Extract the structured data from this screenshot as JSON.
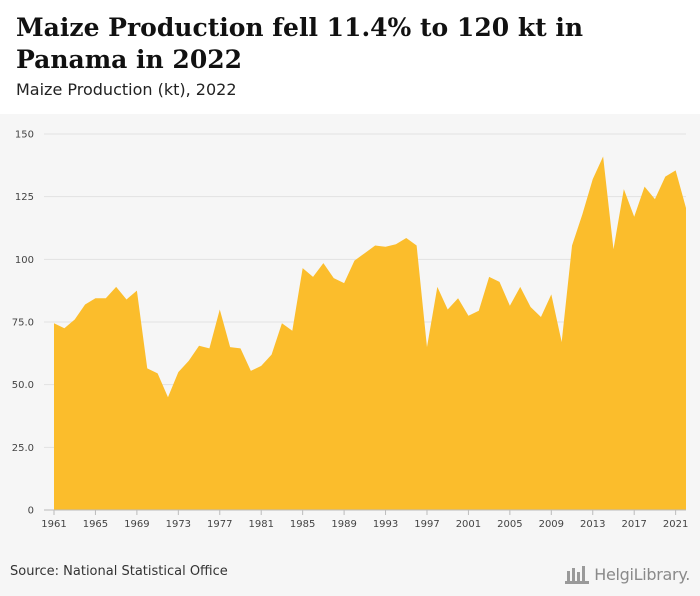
{
  "header": {
    "title": "Maize Production fell 11.4% to 120 kt in Panama in 2022",
    "subtitle": "Maize Production (kt), 2022"
  },
  "footer": {
    "source": "Source: National Statistical Office",
    "brand": "HelgiLibrary."
  },
  "colors": {
    "area_fill": "#fbbd2c",
    "grid": "#e2e2e2",
    "plot_bg": "#f6f6f6"
  },
  "chart_data": {
    "type": "area",
    "title": "Maize Production fell 11.4% to 120 kt in Panama in 2022",
    "subtitle": "Maize Production (kt), 2022",
    "xlabel": "",
    "ylabel": "",
    "x": [
      1961,
      1962,
      1963,
      1964,
      1965,
      1966,
      1967,
      1968,
      1969,
      1970,
      1971,
      1972,
      1973,
      1974,
      1975,
      1976,
      1977,
      1978,
      1979,
      1980,
      1981,
      1982,
      1983,
      1984,
      1985,
      1986,
      1987,
      1988,
      1989,
      1990,
      1991,
      1992,
      1993,
      1994,
      1995,
      1996,
      1997,
      1998,
      1999,
      2000,
      2001,
      2002,
      2003,
      2004,
      2005,
      2006,
      2007,
      2008,
      2009,
      2010,
      2011,
      2012,
      2013,
      2014,
      2015,
      2016,
      2017,
      2018,
      2019,
      2020,
      2021,
      2022
    ],
    "series": [
      {
        "values": [
          74.5,
          72.5,
          76,
          82,
          84.5,
          84.5,
          89,
          84,
          87.5,
          56.5,
          54.5,
          45,
          55,
          59.5,
          65.5,
          64.5,
          80,
          65,
          64.5,
          55.5,
          57.5,
          62,
          74.5,
          71.5,
          96.5,
          93,
          98.5,
          92.5,
          90.5,
          99.5,
          102.5,
          105.5,
          105,
          106,
          108.5,
          105.5,
          65,
          89,
          80,
          84.5,
          77.5,
          79.5,
          93,
          91,
          81.5,
          89,
          81,
          77,
          86,
          67,
          105.5,
          118,
          132,
          141,
          104,
          128,
          117,
          129,
          124,
          133,
          135.5,
          120.5
        ]
      }
    ],
    "x_ticks": [
      "1961",
      "1965",
      "1969",
      "1973",
      "1977",
      "1981",
      "1985",
      "1989",
      "1993",
      "1997",
      "2001",
      "2005",
      "2009",
      "2013",
      "2017",
      "2021"
    ],
    "y_ticks": [
      "0",
      "25.0",
      "50.0",
      "75.0",
      "100",
      "125",
      "150"
    ],
    "ylim": [
      0,
      150
    ],
    "xlim": [
      1961,
      2022
    ],
    "grid": "horizontal",
    "legend": "none"
  }
}
